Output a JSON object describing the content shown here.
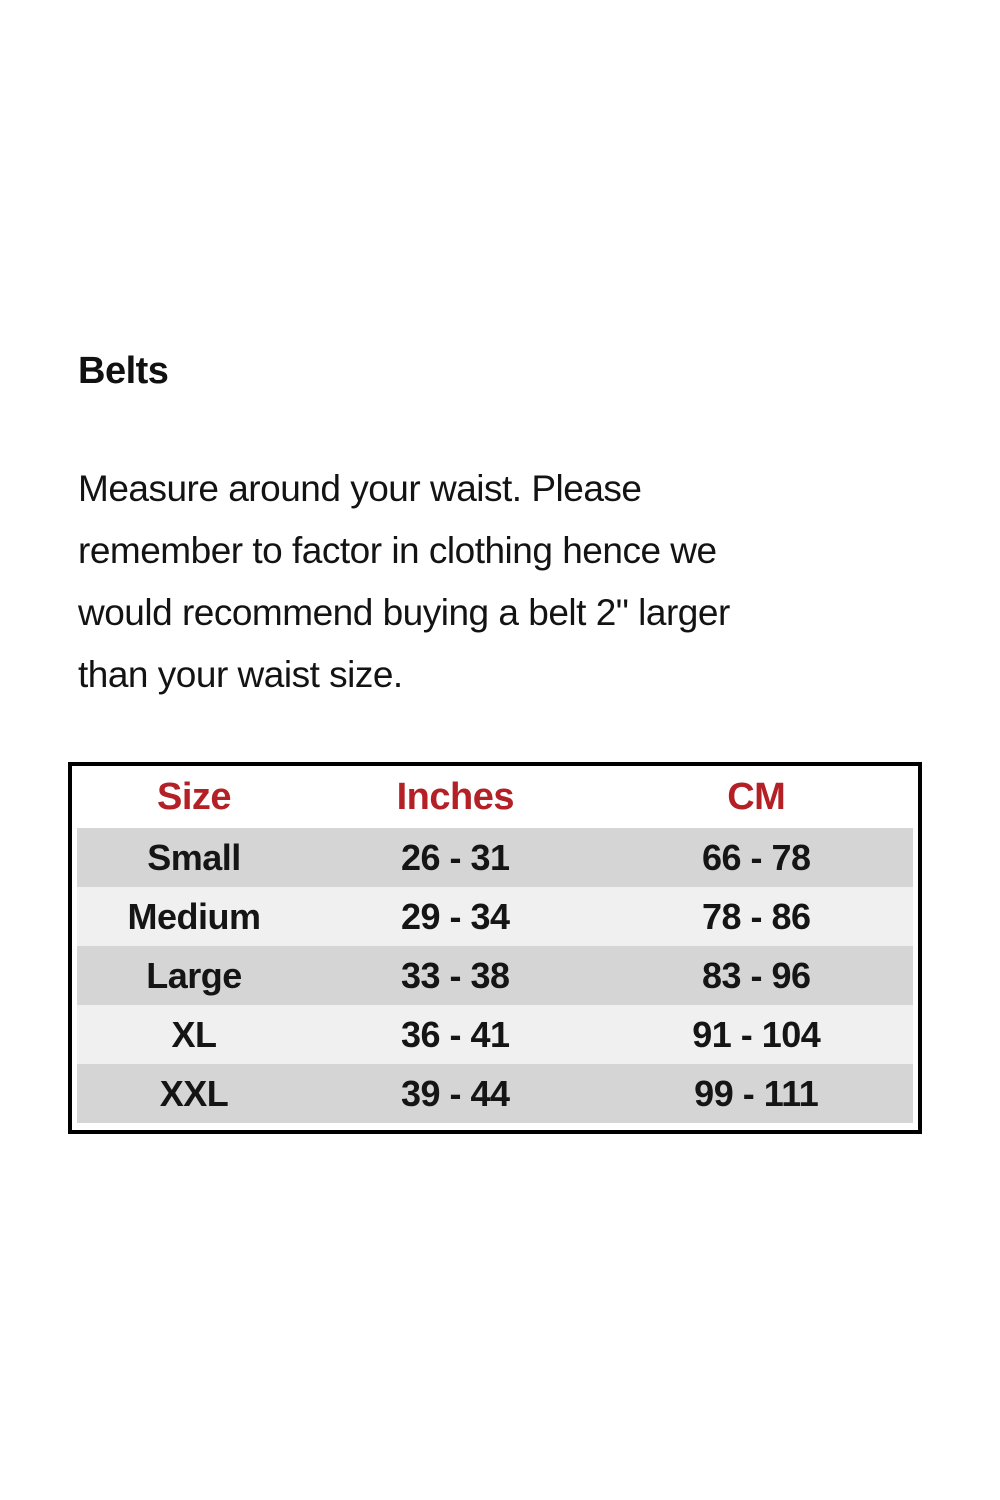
{
  "page": {
    "heading": "Belts",
    "description": "Measure around your waist. Please\nremember to factor in clothing hence we\nwould recommend buying a belt 2\" larger\nthan your waist size."
  },
  "size_chart": {
    "columns": [
      "Size",
      "Inches",
      "CM"
    ],
    "rows": [
      [
        "Small",
        "26 - 31",
        "66 - 78"
      ],
      [
        "Medium",
        "29 - 34",
        "78 - 86"
      ],
      [
        "Large",
        "33 - 38",
        "83 - 96"
      ],
      [
        "XL",
        "36 - 41",
        "91 - 104"
      ],
      [
        "XXL",
        "39 - 44",
        "99 - 111"
      ]
    ],
    "colors": {
      "header_text": "#b32025",
      "row_shade_dark": "#d5d5d5",
      "row_shade_light": "#f0f0f0",
      "table_border": "#000000",
      "body_text": "#151515"
    }
  }
}
